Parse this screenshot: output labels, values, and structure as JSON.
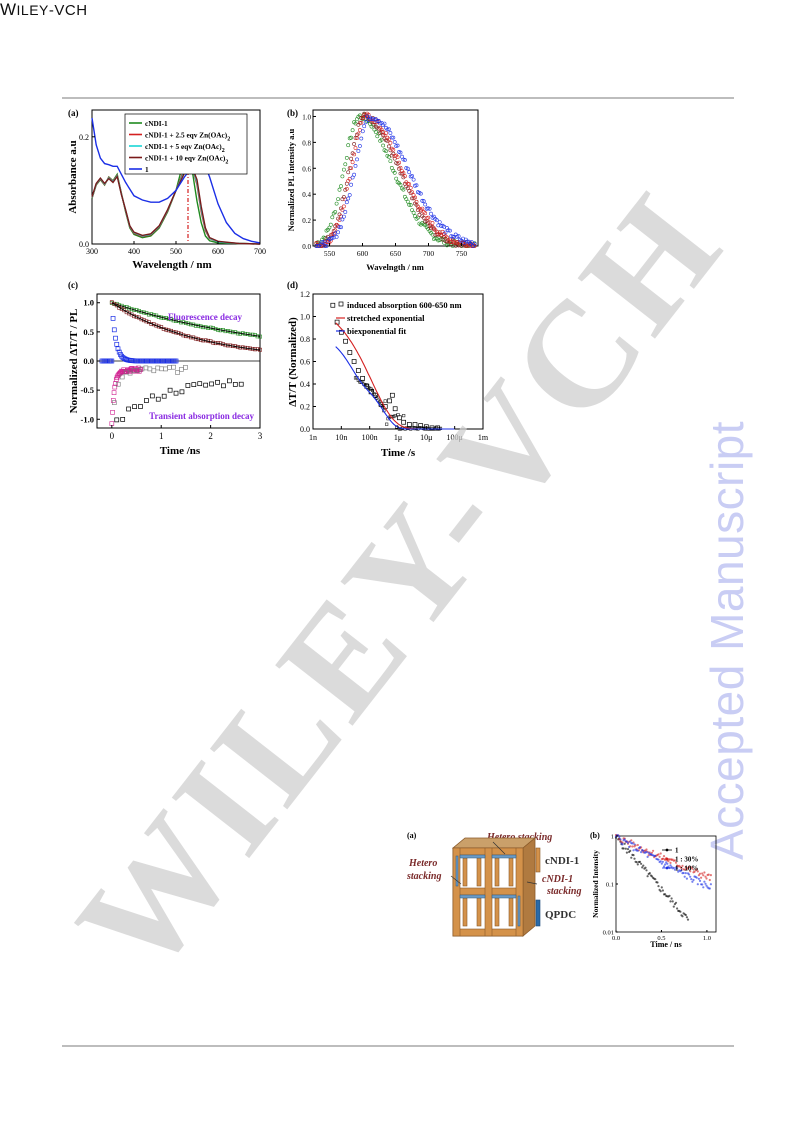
{
  "header": {
    "publisher_first": "W",
    "publisher_rest": "ILEY",
    "publisher_suffix": "-VCH"
  },
  "side_banner": "Accepted Manuscript",
  "watermark": "WILEY-VCH",
  "colors": {
    "green": "#1f8a1f",
    "red": "#d42020",
    "cyan": "#19d6d6",
    "maroon": "#7a1a1a",
    "blue": "#1b2fe6",
    "purple": "#8a2be2",
    "pink": "#d01f8f",
    "banner": "#c9cdf4",
    "watermark": "#d0d0d0"
  },
  "chart_data": [
    {
      "panel": "(a)",
      "type": "line",
      "xlabel": "Wavelength / nm",
      "ylabel": "Absorbance a.u",
      "xlim": [
        300,
        700
      ],
      "ylim": [
        0,
        0.25
      ],
      "xticks": [
        "300",
        "400",
        "500",
        "600",
        "700"
      ],
      "yticks": [
        "0.0",
        "0.2"
      ],
      "legend": [
        "cNDI-1",
        "cNDI-1 + 2.5 eqv Zn(OAc)2",
        "cNDI-1 + 5 eqv Zn(OAc)2",
        "cNDI-1 + 10 eqv Zn(OAc)2",
        "1"
      ],
      "series": [
        {
          "name": "cNDI-1",
          "color": "green",
          "x": [
            300,
            310,
            320,
            330,
            340,
            350,
            360,
            370,
            380,
            390,
            400,
            420,
            440,
            460,
            480,
            500,
            510,
            520,
            530,
            540,
            550,
            560,
            570,
            580,
            600,
            650,
            700
          ],
          "y": [
            0.085,
            0.11,
            0.12,
            0.11,
            0.125,
            0.118,
            0.13,
            0.095,
            0.06,
            0.03,
            0.018,
            0.012,
            0.015,
            0.03,
            0.06,
            0.1,
            0.13,
            0.155,
            0.155,
            0.13,
            0.08,
            0.04,
            0.015,
            0.006,
            0.002,
            0.001,
            0.0
          ]
        },
        {
          "name": "cNDI-1 + 2.5 eqv Zn(OAc)2",
          "color": "red",
          "x": [
            300,
            310,
            320,
            330,
            340,
            350,
            360,
            370,
            380,
            390,
            400,
            420,
            440,
            460,
            480,
            500,
            510,
            520,
            530,
            540,
            550,
            560,
            570,
            580,
            600,
            650,
            700
          ],
          "y": [
            0.086,
            0.111,
            0.121,
            0.111,
            0.124,
            0.117,
            0.128,
            0.094,
            0.062,
            0.032,
            0.02,
            0.014,
            0.017,
            0.032,
            0.062,
            0.1,
            0.12,
            0.14,
            0.148,
            0.14,
            0.11,
            0.06,
            0.025,
            0.01,
            0.004,
            0.001,
            0.0
          ]
        },
        {
          "name": "cNDI-1 + 5 eqv Zn(OAc)2",
          "color": "cyan",
          "x": [
            300,
            310,
            320,
            330,
            340,
            350,
            360,
            370,
            380,
            390,
            400,
            420,
            440,
            460,
            480,
            500,
            510,
            520,
            530,
            540,
            550,
            560,
            570,
            580,
            600,
            650,
            700
          ],
          "y": [
            0.087,
            0.112,
            0.122,
            0.112,
            0.123,
            0.116,
            0.127,
            0.093,
            0.063,
            0.033,
            0.021,
            0.015,
            0.018,
            0.033,
            0.063,
            0.1,
            0.118,
            0.135,
            0.145,
            0.14,
            0.115,
            0.065,
            0.028,
            0.011,
            0.004,
            0.001,
            0.0
          ]
        },
        {
          "name": "cNDI-1 + 10 eqv Zn(OAc)2",
          "color": "maroon",
          "x": [
            300,
            310,
            320,
            330,
            340,
            350,
            360,
            370,
            380,
            390,
            400,
            420,
            440,
            460,
            480,
            500,
            510,
            520,
            530,
            540,
            550,
            560,
            570,
            580,
            600,
            650,
            700
          ],
          "y": [
            0.088,
            0.113,
            0.123,
            0.113,
            0.122,
            0.115,
            0.126,
            0.092,
            0.064,
            0.034,
            0.022,
            0.016,
            0.019,
            0.034,
            0.064,
            0.1,
            0.116,
            0.132,
            0.142,
            0.14,
            0.12,
            0.07,
            0.03,
            0.012,
            0.005,
            0.001,
            0.0
          ]
        },
        {
          "name": "1",
          "color": "blue",
          "x": [
            300,
            305,
            310,
            320,
            330,
            340,
            350,
            360,
            380,
            400,
            420,
            440,
            460,
            480,
            500,
            520,
            530,
            540,
            550,
            560,
            570,
            580,
            590,
            600,
            620,
            640,
            660,
            680,
            700
          ],
          "y": [
            0.235,
            0.21,
            0.185,
            0.16,
            0.15,
            0.148,
            0.145,
            0.145,
            0.115,
            0.09,
            0.082,
            0.078,
            0.078,
            0.085,
            0.1,
            0.125,
            0.135,
            0.142,
            0.152,
            0.153,
            0.145,
            0.125,
            0.1,
            0.075,
            0.04,
            0.02,
            0.01,
            0.005,
            0.002
          ]
        }
      ]
    },
    {
      "panel": "(b)",
      "type": "scatter",
      "xlabel": "Wavelngth / nm",
      "ylabel": "Normalized PL Intensity a.u",
      "xlim": [
        525,
        775
      ],
      "ylim": [
        0,
        1.05
      ],
      "xticks": [
        "550",
        "600",
        "650",
        "700",
        "750"
      ],
      "yticks": [
        "0.0",
        "0.2",
        "0.4",
        "0.6",
        "0.8",
        "1.0"
      ],
      "peaks": [
        {
          "color": "green",
          "center": 596,
          "width_left": 38,
          "width_right": 80
        },
        {
          "color": "maroon",
          "center": 603,
          "width_left": 37,
          "width_right": 82
        },
        {
          "color": "red",
          "center": 606,
          "width_left": 37,
          "width_right": 84
        },
        {
          "color": "blue",
          "center": 612,
          "width_left": 38,
          "width_right": 90
        }
      ]
    },
    {
      "panel": "(c)",
      "type": "scatter",
      "xlabel": "Time /ns",
      "ylabel": "Normalized ΔT/T / PL",
      "xlim": [
        -0.3,
        3
      ],
      "ylim": [
        -1.15,
        1.15
      ],
      "xticks": [
        "0",
        "1",
        "2",
        "3"
      ],
      "yticks": [
        "-1.0",
        "-0.5",
        "0.0",
        "0.5",
        "1.0"
      ],
      "annotations": [
        "Fluorescence decay",
        "Transient absorption decay"
      ],
      "series": [
        {
          "color": "green",
          "sign": 1,
          "tau": 3.5
        },
        {
          "color": "maroon",
          "sign": 1,
          "tau": 1.8
        },
        {
          "color": "blue",
          "sign": 1,
          "tau": 0.08
        },
        {
          "color": "pink",
          "sign": -1,
          "tau": 0.05
        },
        {
          "color": "gray",
          "sign": -1,
          "tau": 0.12
        },
        {
          "color": "black",
          "sign": -1,
          "tau": 0.9
        }
      ]
    },
    {
      "panel": "(d)",
      "type": "scatter",
      "xlabel": "Time /s",
      "ylabel": "ΔT/T (Normalized)",
      "xlim_log10": [
        -9,
        -3
      ],
      "ylim": [
        0,
        1.2
      ],
      "xticks": [
        "1n",
        "10n",
        "100n",
        "1μ",
        "10μ",
        "100μ",
        "1m"
      ],
      "yticks": [
        "0.0",
        "0.2",
        "0.4",
        "0.6",
        "0.8",
        "1.0",
        "1.2"
      ],
      "legend": [
        "induced absorption 600-650 nm",
        "stretched exponential",
        "biexponential fit"
      ],
      "points": [
        [
          -8.3,
          1.1
        ],
        [
          -8.15,
          0.95
        ],
        [
          -8.0,
          0.86
        ],
        [
          -7.85,
          0.78
        ],
        [
          -7.7,
          0.68
        ],
        [
          -7.55,
          0.6
        ],
        [
          -7.4,
          0.52
        ],
        [
          -7.25,
          0.45
        ],
        [
          -7.1,
          0.38
        ],
        [
          -6.95,
          0.33
        ],
        [
          -6.8,
          0.3
        ],
        [
          -6.6,
          0.22
        ],
        [
          -6.45,
          0.2
        ],
        [
          -6.3,
          0.25
        ],
        [
          -6.2,
          0.3
        ],
        [
          -6.1,
          0.18
        ],
        [
          -5.95,
          0.1
        ],
        [
          -5.8,
          0.06
        ],
        [
          -5.6,
          0.04
        ],
        [
          -5.4,
          0.04
        ],
        [
          -5.2,
          0.03
        ],
        [
          -5.0,
          0.02
        ],
        [
          -4.8,
          0.01
        ],
        [
          -4.6,
          0.01
        ]
      ]
    },
    {
      "panel": "(b)",
      "type": "scatter",
      "xlabel": "Time / ns",
      "ylabel": "Normalized Intensity",
      "xlim": [
        0,
        1.1
      ],
      "ylim_log10": [
        -2,
        0
      ],
      "xticks": [
        "0.0",
        "0.5",
        "1.0"
      ],
      "yticks": [
        "0.01",
        "0.1",
        "1"
      ],
      "legend": [
        "1",
        "1 : 30%",
        "1 : 10%"
      ],
      "series": [
        {
          "name": "1",
          "color": "black",
          "tau": 0.2,
          "floor": 0.0
        },
        {
          "name": "1 : 30%",
          "color": "red",
          "tau": 0.5,
          "floor": 0.015
        },
        {
          "name": "1 : 10%",
          "color": "blue",
          "tau": 0.4,
          "floor": 0.015
        }
      ]
    }
  ],
  "scheme": {
    "panel": "(a)",
    "labels": {
      "hetero_stacking_top": "Hetero stacking",
      "hetero_stacking_left_1": "Hetero",
      "hetero_stacking_left_2": "stacking",
      "cndi_stacking_1": "cNDI-1",
      "cndi_stacking_2": "stacking",
      "legend_cndi": "cNDI-1",
      "legend_qpdc": "QPDC"
    }
  }
}
